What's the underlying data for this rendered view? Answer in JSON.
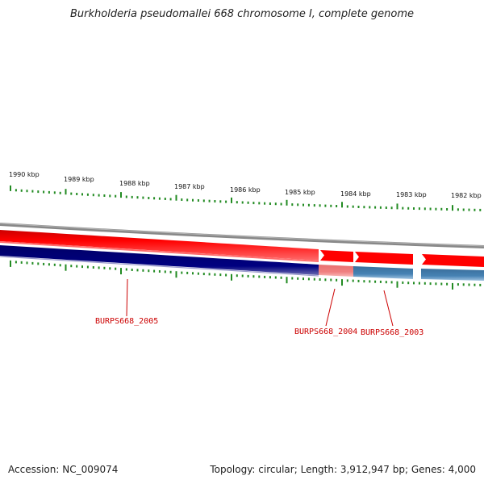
{
  "title": "Burkholderia pseudomallei 668 chromosome I, complete genome",
  "footer": {
    "accession_label": "Accession:",
    "accession": "NC_009074",
    "topology_label": "Topology:",
    "topology": "circular",
    "length_label": "Length:",
    "length": "3,912,947 bp",
    "genes_label": "Genes:",
    "genes": "4,000"
  },
  "colors": {
    "forward_strand": "#ff0000",
    "forward_highlight": "#ff5555",
    "reverse_strand": "#000080",
    "reverse_light": "#4682b4",
    "reverse_pink": "#f08080",
    "backbone": "#888888",
    "ticks": "#228b22",
    "gene_label": "#cc0000"
  },
  "ruler": {
    "unit": "kbp",
    "labels": [
      "1990 kbp",
      "1989 kbp",
      "1988 kbp",
      "1987 kbp",
      "1986 kbp",
      "1985 kbp",
      "1984 kbp",
      "1983 kbp",
      "1982 kbp"
    ]
  },
  "genes": [
    {
      "name": "BURPS668_2005",
      "strand": "reverse"
    },
    {
      "name": "BURPS668_2004",
      "strand": "reverse"
    },
    {
      "name": "BURPS668_2003",
      "strand": "reverse"
    }
  ]
}
